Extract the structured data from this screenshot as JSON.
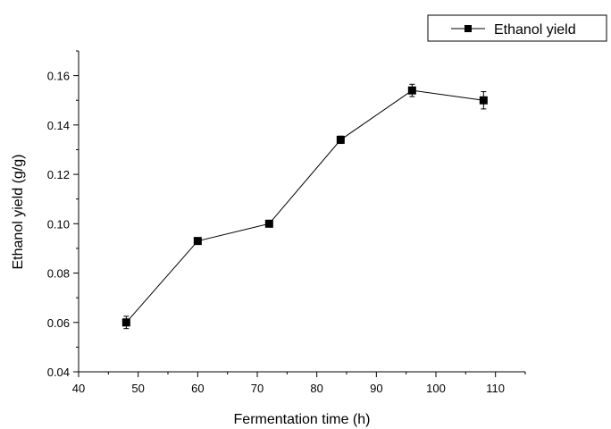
{
  "chart_data": {
    "type": "line",
    "xlabel": "Fermentation time (h)",
    "ylabel": "Ethanol yield (g/g)",
    "xlim": [
      40,
      115
    ],
    "ylim": [
      0.04,
      0.17
    ],
    "x_ticks": [
      40,
      50,
      60,
      70,
      80,
      90,
      100,
      110
    ],
    "x_tick_labels": [
      "40",
      "50",
      "60",
      "70",
      "80",
      "90",
      "100",
      "110"
    ],
    "y_ticks": [
      0.04,
      0.06,
      0.08,
      0.1,
      0.12,
      0.14,
      0.16
    ],
    "y_tick_labels": [
      "0.04",
      "0.06",
      "0.08",
      "0.10",
      "0.12",
      "0.14",
      "0.16"
    ],
    "grid": false,
    "legend_position": "top-right",
    "series": [
      {
        "name": "Ethanol yield",
        "color": "#000000",
        "marker": "square",
        "x": [
          48,
          60,
          72,
          84,
          96,
          108
        ],
        "y": [
          0.06,
          0.093,
          0.1,
          0.134,
          0.154,
          0.15
        ],
        "error": [
          0.0025,
          0.001,
          0.001,
          0.0015,
          0.0025,
          0.0035
        ]
      }
    ]
  }
}
